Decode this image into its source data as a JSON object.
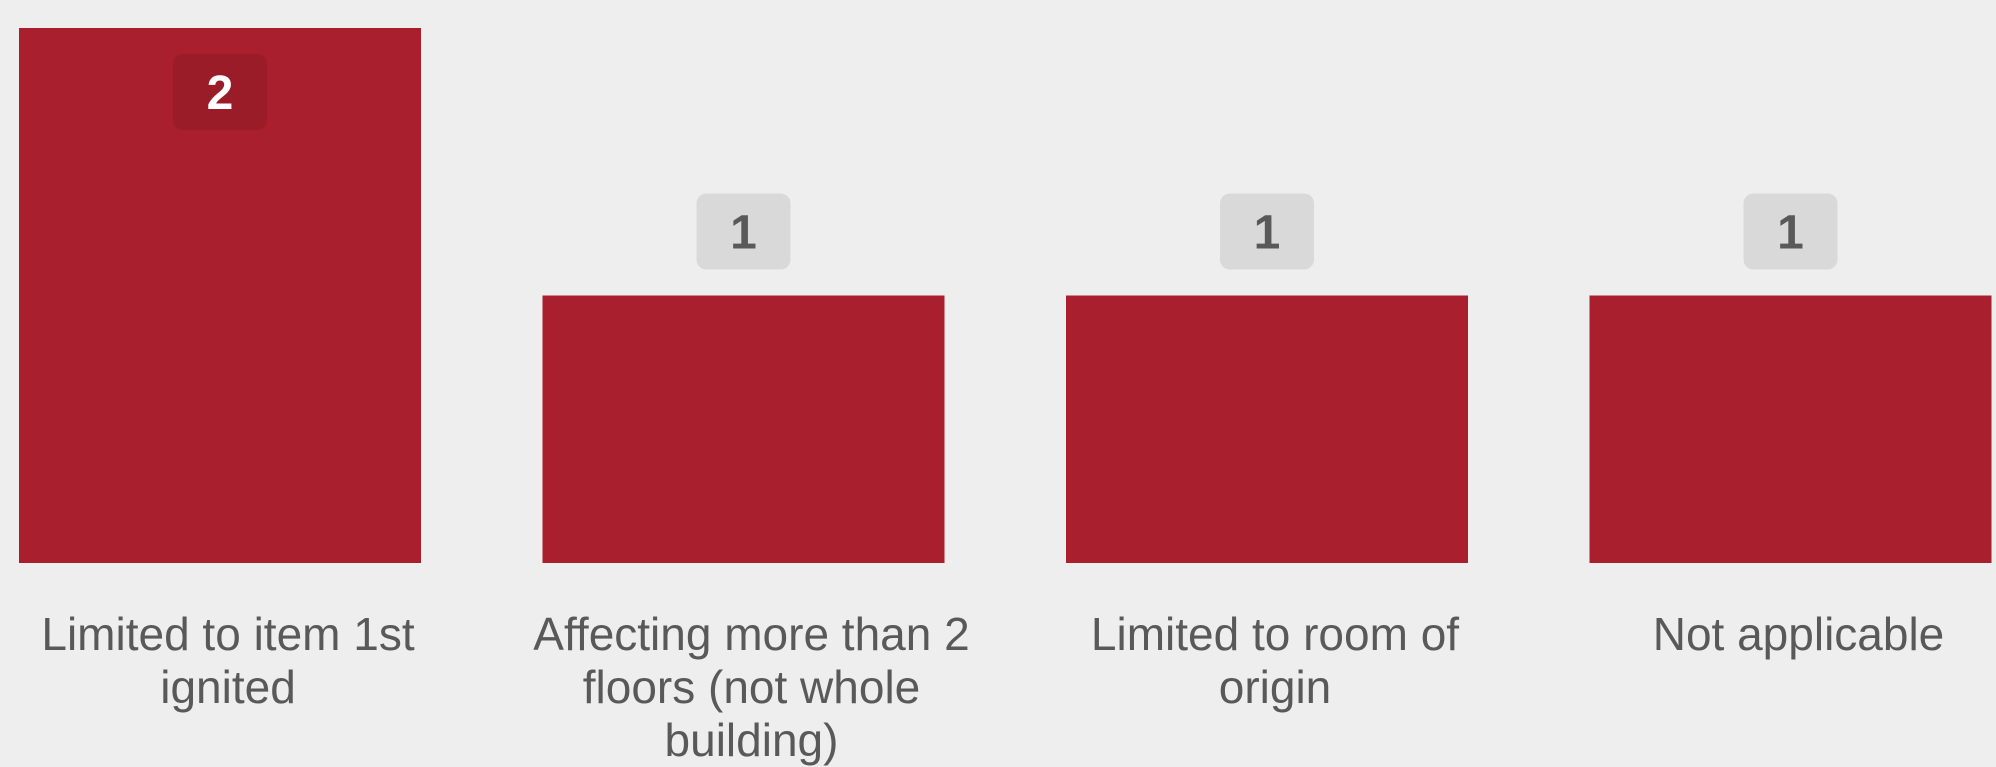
{
  "chart_data": {
    "type": "bar",
    "categories": [
      "Limited to item 1st ignited",
      "Affecting more than 2 floors (not whole building)",
      "Limited to room of origin",
      "Not applicable"
    ],
    "values": [
      2,
      1,
      1,
      1
    ],
    "ylim": [
      0,
      2
    ],
    "grid": false,
    "legend": "none",
    "data_labels": true,
    "colors": {
      "bar": "#a91f2d",
      "background": "#eeeeee",
      "label_text": "#595959",
      "inside_label_bg": "#9a1c28",
      "inside_label_text": "#ffffff",
      "outside_label_bg": "#d9d9d9",
      "outside_label_text": "#595959"
    }
  }
}
